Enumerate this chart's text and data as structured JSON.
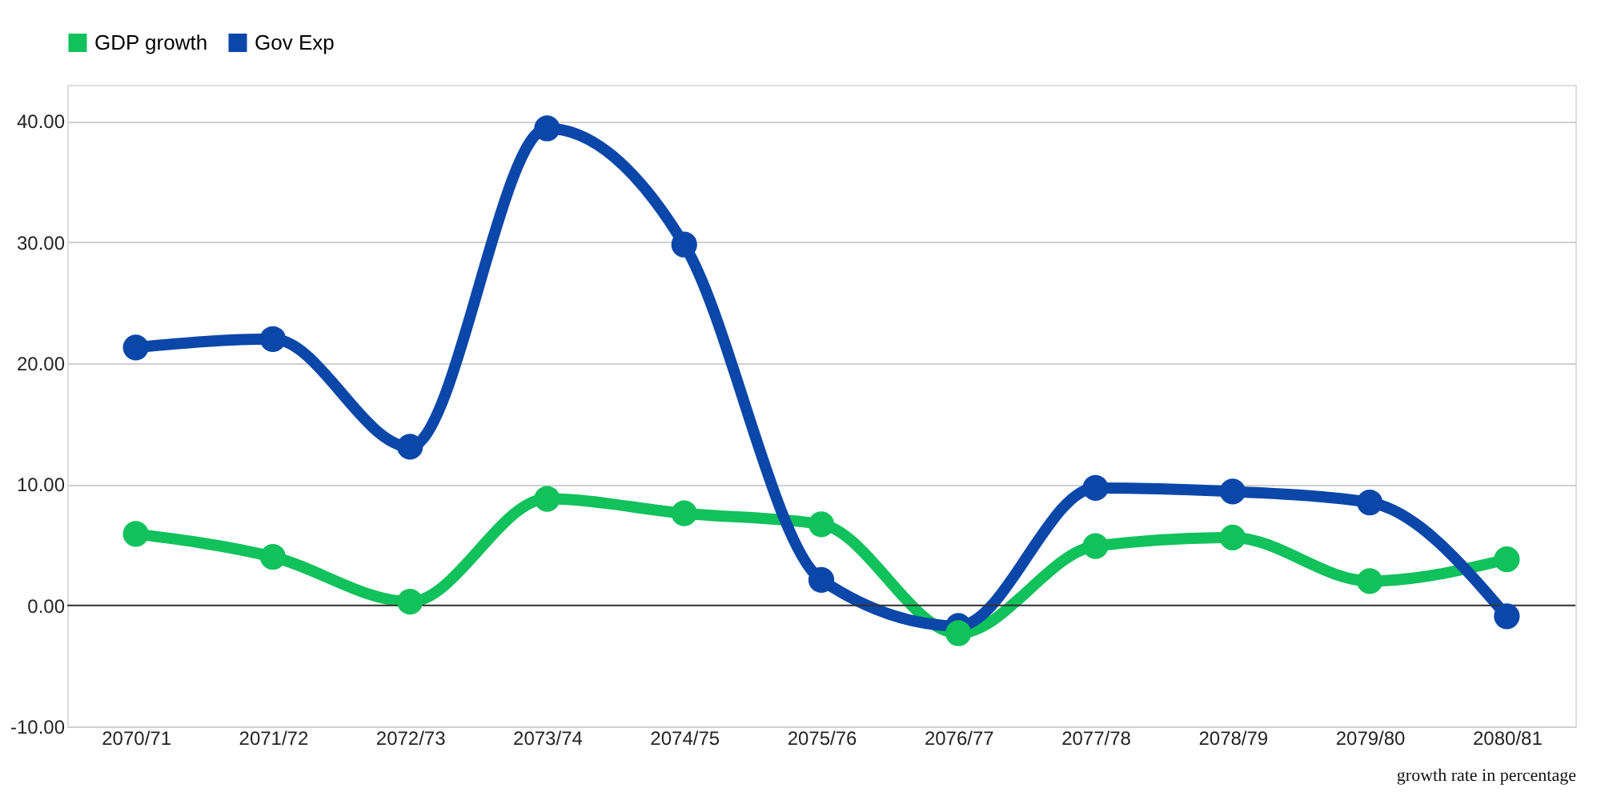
{
  "chart_data": {
    "type": "line",
    "categories": [
      "2070/71",
      "2071/72",
      "2072/73",
      "2073/74",
      "2074/75",
      "2075/76",
      "2076/77",
      "2077/78",
      "2078/79",
      "2079/80",
      "2080/81"
    ],
    "series": [
      {
        "name": "GDP growth",
        "color": "#11c15b",
        "values": [
          5.9,
          4.0,
          0.3,
          8.8,
          7.6,
          6.7,
          -2.3,
          4.9,
          5.6,
          2.0,
          3.8
        ]
      },
      {
        "name": "Gov Exp",
        "color": "#0b47a8",
        "values": [
          21.3,
          22.0,
          13.1,
          39.4,
          29.8,
          2.1,
          -1.7,
          9.7,
          9.4,
          8.5,
          -0.9
        ]
      }
    ],
    "ylim": [
      -10,
      43
    ],
    "yticks": [
      {
        "value": -10,
        "label": "-10.00"
      },
      {
        "value": 0,
        "label": "0.00"
      },
      {
        "value": 10,
        "label": "10.00"
      },
      {
        "value": 20,
        "label": "20.00"
      },
      {
        "value": 30,
        "label": "30.00"
      },
      {
        "value": 40,
        "label": "40.00"
      }
    ],
    "grid": "y",
    "legend": "top",
    "marker": "circle",
    "line_style": "solid",
    "annotations": [
      "growth rate in percentage"
    ]
  }
}
